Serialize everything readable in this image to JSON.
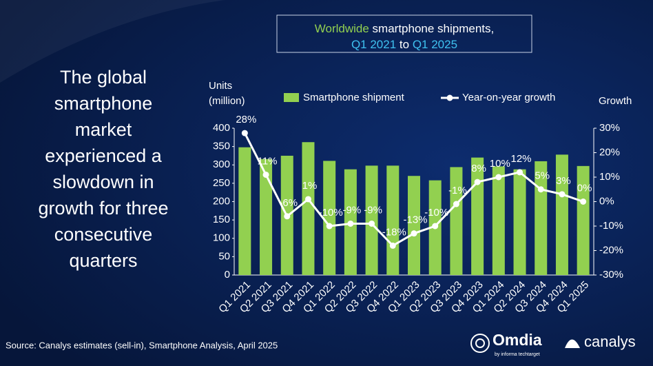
{
  "chart_data": {
    "type": "bar",
    "title": [
      [
        {
          "text": "Worldwide",
          "color": "#92d050"
        },
        {
          "text": " smartphone shipments,",
          "color": "#ffffff"
        }
      ],
      [
        {
          "text": "Q1 2021",
          "color": "#3fc1f0"
        },
        {
          "text": " to ",
          "color": "#ffffff"
        },
        {
          "text": "Q1 2025",
          "color": "#3fc1f0"
        }
      ]
    ],
    "headline_white": [
      "The global",
      "smartphone",
      "market",
      "experienced a"
    ],
    "headline_green": [
      "slowdown in",
      "growth for three",
      "consecutive",
      "quarters"
    ],
    "ylabel": "Units (million)",
    "y2label": "Growth",
    "categories": [
      "Q1 2021",
      "Q2 2021",
      "Q3 2021",
      "Q4 2021",
      "Q1 2022",
      "Q2 2022",
      "Q3 2022",
      "Q4 2022",
      "Q1 2023",
      "Q2 2023",
      "Q3 2023",
      "Q4 2023",
      "Q1 2024",
      "Q2 2024",
      "Q3 2024",
      "Q4 2024",
      "Q1 2025"
    ],
    "series": [
      {
        "name": "Smartphone shipment",
        "type": "bar",
        "color": "#92d050",
        "values": [
          348,
          316,
          325,
          362,
          311,
          288,
          298,
          298,
          270,
          258,
          294,
          320,
          296,
          288,
          310,
          328,
          297
        ]
      },
      {
        "name": "Year-on-year growth",
        "type": "line",
        "color": "#ffffff",
        "axis": "y2",
        "values": [
          28,
          11,
          -6,
          1,
          -10,
          -9,
          -9,
          -18,
          -13,
          -10,
          -1,
          8,
          10,
          12,
          5,
          3,
          0
        ],
        "value_labels": [
          "28%",
          "11%",
          "-6%",
          "1%",
          "-10%",
          "-9%",
          "-9%",
          "-18%",
          "-13%",
          "-10%",
          "-1%",
          "8%",
          "10%",
          "12%",
          "5%",
          "3%",
          "0%"
        ]
      }
    ],
    "ylim": [
      0,
      400
    ],
    "yticks": [
      0,
      50,
      100,
      150,
      200,
      250,
      300,
      350,
      400
    ],
    "y2lim": [
      -30,
      30
    ],
    "y2ticks": [
      {
        "value": -30,
        "label": "-30%"
      },
      {
        "value": -20,
        "label": "-20%"
      },
      {
        "value": -10,
        "label": "-10%"
      },
      {
        "value": 0,
        "label": "0%"
      },
      {
        "value": 10,
        "label": "10%"
      },
      {
        "value": 20,
        "label": "20%"
      },
      {
        "value": 30,
        "label": "30%"
      }
    ],
    "legend": "top",
    "source": "Source: Canalys estimates (sell-in), Smartphone Analysis, April 2025",
    "logos": {
      "omdia": "Omdia",
      "omdia_tag": "by informa techtarget",
      "canalys": "canalys"
    }
  }
}
